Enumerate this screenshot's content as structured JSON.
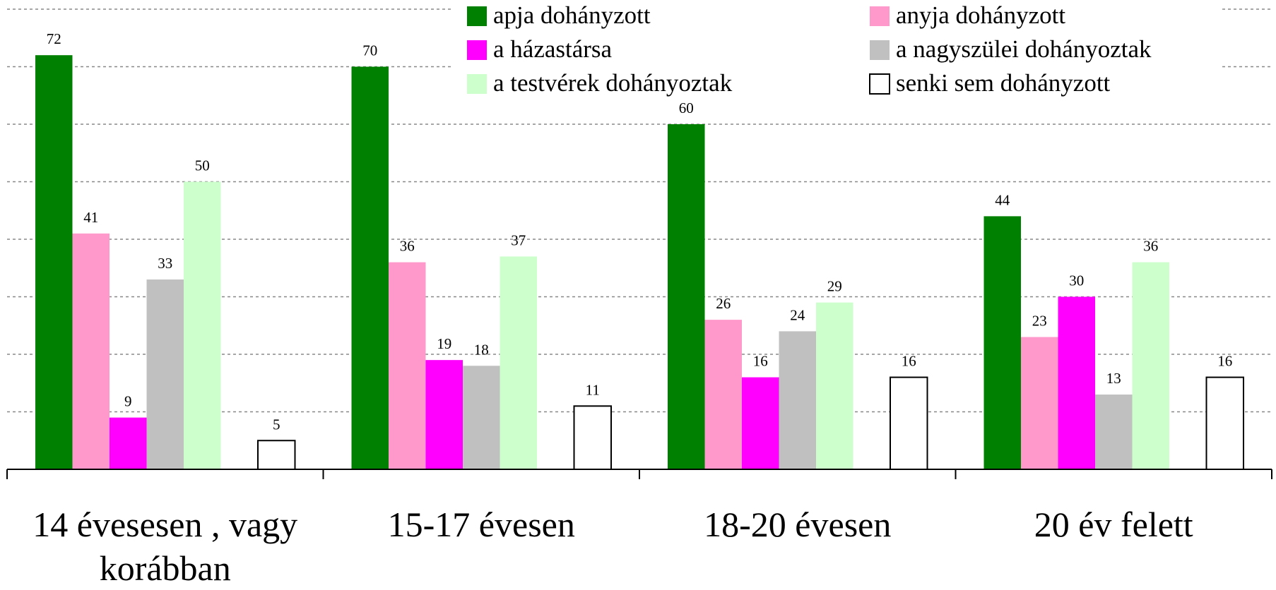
{
  "chart_data": {
    "type": "bar",
    "categories": [
      "14 évesesen , vagy korábban",
      "15-17 évesen",
      "18-20 évesen",
      "20 év felett"
    ],
    "series": [
      {
        "name": "apja dohányzott",
        "color": "#008000",
        "values": [
          72,
          70,
          60,
          44
        ]
      },
      {
        "name": "anyja dohányzott",
        "color": "#ff99cc",
        "values": [
          41,
          36,
          26,
          23
        ]
      },
      {
        "name": "a házastársa",
        "color": "#ff00ff",
        "values": [
          9,
          19,
          16,
          30
        ]
      },
      {
        "name": "a nagyszülei dohányoztak",
        "color": "#c0c0c0",
        "values": [
          33,
          18,
          24,
          13
        ]
      },
      {
        "name": "a testvérek dohányoztak",
        "color": "#ccffcc",
        "values": [
          50,
          37,
          29,
          36
        ]
      },
      {
        "name": "senki sem dohányzott",
        "color": "#ffffff",
        "values": [
          5,
          11,
          16,
          16
        ]
      }
    ],
    "ylim": [
      0,
      80
    ],
    "yticks": [
      10,
      20,
      30,
      40,
      50,
      60,
      70,
      80
    ],
    "grid": true
  }
}
